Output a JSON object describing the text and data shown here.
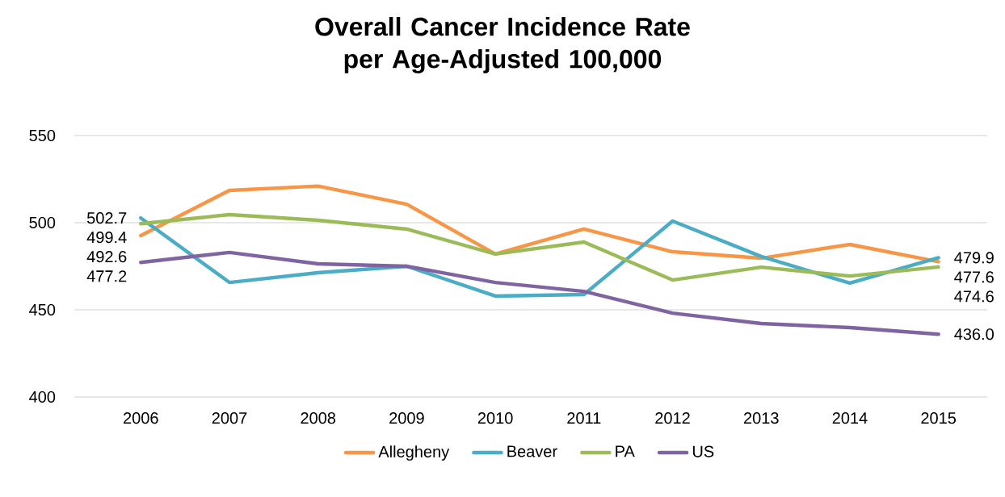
{
  "chart_data": {
    "type": "line",
    "title": "Overall Cancer Incidence Rate per Age-Adjusted 100,000",
    "categories": [
      "2006",
      "2007",
      "2008",
      "2009",
      "2010",
      "2011",
      "2012",
      "2013",
      "2014",
      "2015"
    ],
    "series": [
      {
        "name": "Allegheny",
        "color": "#f79646",
        "values": [
          492.6,
          518.5,
          521.0,
          510.6,
          482.0,
          496.3,
          483.3,
          479.6,
          487.5,
          477.6
        ],
        "value_labels": [
          "492.6",
          null,
          null,
          null,
          null,
          null,
          null,
          null,
          null,
          "477.6"
        ]
      },
      {
        "name": "Beaver",
        "color": "#4bacc6",
        "values": [
          502.7,
          465.7,
          471.3,
          475.0,
          457.9,
          458.8,
          500.9,
          480.6,
          465.3,
          479.9
        ],
        "value_labels": [
          "502.7",
          null,
          null,
          null,
          null,
          null,
          null,
          null,
          null,
          "479.9"
        ]
      },
      {
        "name": "PA",
        "color": "#9bbb59",
        "values": [
          499.4,
          504.6,
          501.4,
          496.3,
          482.0,
          488.9,
          467.1,
          474.5,
          469.4,
          474.6
        ],
        "value_labels": [
          "499.4",
          null,
          null,
          null,
          null,
          null,
          null,
          null,
          null,
          "474.6"
        ]
      },
      {
        "name": "US",
        "color": "#8064a2",
        "values": [
          477.2,
          482.9,
          476.4,
          475.0,
          465.7,
          460.6,
          448.1,
          442.1,
          439.8,
          436.0
        ],
        "value_labels": [
          "477.2",
          null,
          null,
          null,
          null,
          null,
          null,
          null,
          null,
          "436.0"
        ]
      }
    ],
    "ylim": [
      400,
      550
    ],
    "yticks": [
      400,
      450,
      500,
      550
    ],
    "grid": "y",
    "legend": "bottom",
    "marker": "none",
    "line_style": "solid"
  }
}
